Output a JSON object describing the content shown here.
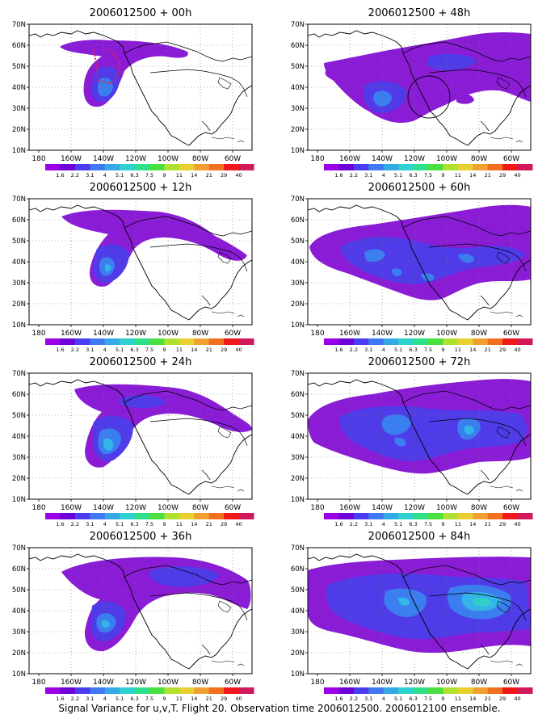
{
  "colors": {
    "scale": [
      "#9b00e6",
      "#6e00d8",
      "#4a3cf0",
      "#3f78f0",
      "#35a8e8",
      "#2fd0d0",
      "#2fe08a",
      "#4ae040",
      "#b0e030",
      "#e8d030",
      "#f0a030",
      "#f07020",
      "#f01818",
      "#d0185a"
    ],
    "contour_fill": {
      "level1": "#8a1cd6",
      "level2": "#4f3ce8",
      "level3": "#3a7ef0",
      "level4": "#34b4e8",
      "level5": "#30d0c8"
    },
    "coast": "#000000",
    "grid": "#777777",
    "track": "#e0205a"
  },
  "colorbar_labels": [
    "1.6",
    "2.2",
    "3.1",
    "4",
    "5.1",
    "6.3",
    "7.5",
    "9",
    "11",
    "14",
    "21",
    "29",
    "40"
  ],
  "x_ticks": [
    "180",
    "160W",
    "140W",
    "120W",
    "100W",
    "80W",
    "60W"
  ],
  "y_ticks": [
    "70N",
    "60N",
    "50N",
    "40N",
    "30N",
    "20N",
    "10N"
  ],
  "panels": [
    {
      "id": "p00",
      "title": "2006012500 + 00h"
    },
    {
      "id": "p48",
      "title": "2006012500 + 48h"
    },
    {
      "id": "p12",
      "title": "2006012500 + 12h"
    },
    {
      "id": "p60",
      "title": "2006012500 + 60h"
    },
    {
      "id": "p24",
      "title": "2006012500 + 24h"
    },
    {
      "id": "p72",
      "title": "2006012500 + 72h"
    },
    {
      "id": "p36",
      "title": "2006012500 + 36h"
    },
    {
      "id": "p84",
      "title": "2006012500 + 84h"
    }
  ],
  "caption": "Signal Variance for u,v,T. Flight 20. Observation time 2006012500. 2006012100 ensemble."
}
